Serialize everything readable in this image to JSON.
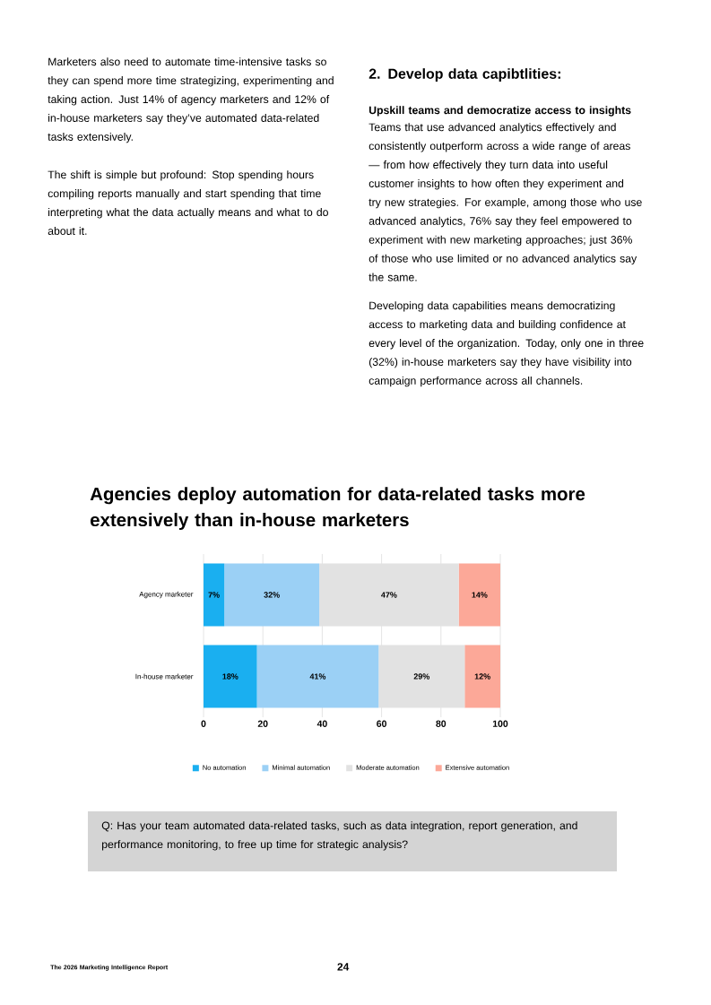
{
  "chart_data": {
    "type": "bar",
    "orientation": "horizontal",
    "stacked": true,
    "title": "Agencies deploy automation for data-related tasks more extensively than in-house marketers",
    "categories": [
      "Agency marketer",
      "In-house marketer"
    ],
    "series": [
      {
        "name": "No automation",
        "color": "#1aaff0",
        "values": [
          7,
          18
        ],
        "value_labels": [
          "7%",
          "18%"
        ]
      },
      {
        "name": "Minimal automation",
        "color": "#9bd0f5",
        "values": [
          32,
          41
        ],
        "value_labels": [
          "32%",
          "41%"
        ]
      },
      {
        "name": "Moderate automation",
        "color": "#e2e2e2",
        "values": [
          47,
          29
        ],
        "value_labels": [
          "47%",
          "29%"
        ]
      },
      {
        "name": "Extensive automation",
        "color": "#fca898",
        "values": [
          14,
          12
        ],
        "value_labels": [
          "14%",
          "12%"
        ]
      }
    ],
    "xlim": [
      0,
      100
    ],
    "xticks": [
      0,
      20,
      40,
      60,
      80,
      100
    ],
    "grid": "x",
    "legend": "bottom",
    "annotations": [
      "Marketers also need to automate time-intensive tasks so they can spend more time strategizing, experimenting and taking action. Just 14% of agency marketers and 12% of in-house marketers say they’ve automated data-related tasks extensively.",
      "The shift is simple but profound: Stop spending hours compiling reports manually and start spending that time interpreting what the data actually means and what to do about it.",
      "2. Develop data capibtlities:",
      "Upskill teams and democratize access to insights",
      "Teams that use advanced analytics effectively and consistently outperform across a wide range of areas — from how effectively they turn data into useful customer insights to how often they experiment and try new strategies. For example, among those who use advanced analytics, 76% say they feel empowered to experiment with new marketing approaches; just 36% of those who use limited or no advanced analytics say the same.",
      "Developing data capabilities means democratizing access to marketing data and building confidence at every level of the organization. Today, only one in three (32%) in-house marketers say they have visibility into campaign performance across all channels.",
      "Q: Has your team automated data-related tasks, such as data integration, report generation, and performance monitoring, to free up time for strategic analysis?",
      "The 2026 Marketing Intelligence Report",
      "24"
    ]
  }
}
